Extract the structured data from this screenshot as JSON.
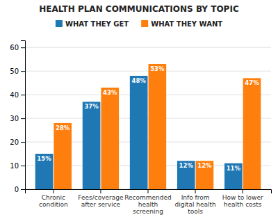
{
  "chart_data": {
    "type": "bar",
    "title": "HEALTH PLAN COMMUNICATIONS BY TOPIC",
    "categories": [
      "Chronic\ncondition",
      "Fees/coverage\nafter service",
      "Recommended\nhealth\nscreening",
      "Info from\ndigital health\ntools",
      "How to lower\nhealth costs"
    ],
    "series": [
      {
        "name": "WHAT THEY GET",
        "values": [
          15,
          37,
          48,
          12,
          11
        ],
        "value_labels": [
          "15%",
          "37%",
          "48%",
          "12%",
          "11%"
        ]
      },
      {
        "name": "WHAT THEY WANT",
        "values": [
          28,
          43,
          53,
          12,
          47
        ],
        "value_labels": [
          "28%",
          "43%",
          "53%",
          "12%",
          "47%"
        ]
      }
    ],
    "ylim": [
      0,
      63
    ],
    "yticks": [
      0,
      10,
      20,
      30,
      40,
      50,
      60
    ],
    "grid": true,
    "legend": "top",
    "data_labels": true
  }
}
